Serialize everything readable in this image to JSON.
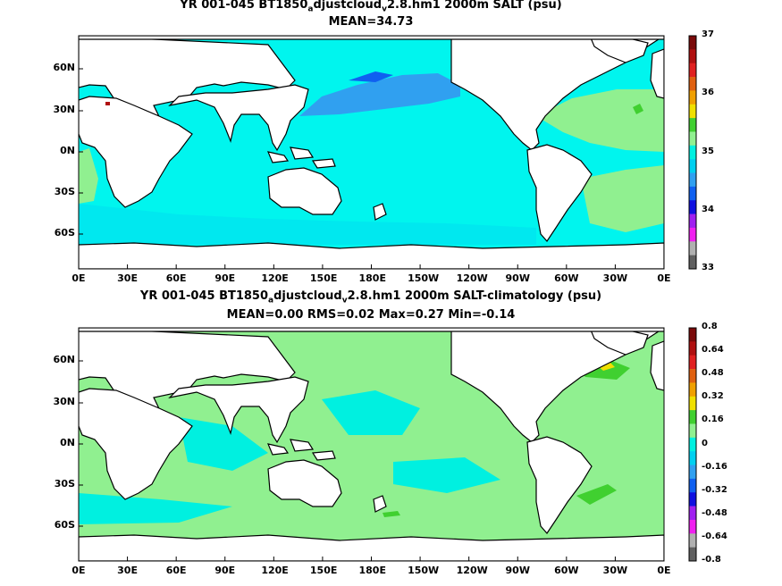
{
  "panels": [
    {
      "title_line1_pre": "YR 001-045 BT1850",
      "title_sub1": "a",
      "title_mid": "djustcloud",
      "title_sub2": "v",
      "title_line1_post": "2.8.hm1 2000m SALT (psu)",
      "title_line2": "MEAN=34.73",
      "colorbar_labels": [
        "37",
        "36",
        "35",
        "34",
        "33"
      ],
      "colors": [
        "#7a0a0a",
        "#b01010",
        "#e02020",
        "#e06010",
        "#f0a000",
        "#f0e000",
        "#40d030",
        "#90f090",
        "#00f0e0",
        "#00d0f0",
        "#30a0f0",
        "#1060f0",
        "#1010e0",
        "#a020f0",
        "#f020f0",
        "#b0b0b0",
        "#606060"
      ],
      "ocean_color": "#00f5ee"
    },
    {
      "title_line1_pre": "YR 001-045 BT1850",
      "title_sub1": "a",
      "title_mid": "djustcloud",
      "title_sub2": "v",
      "title_line1_post": "2.8.hm1 2000m SALT-climatology (psu)",
      "title_line2": "MEAN=0.00   RMS=0.02   Max=0.27   Min=-0.14",
      "colorbar_labels": [
        "0.8",
        "0.64",
        "0.48",
        "0.32",
        "0.16",
        "0",
        "-0.16",
        "-0.32",
        "-0.48",
        "-0.64",
        "-0.8"
      ],
      "colors": [
        "#7a0a0a",
        "#b01010",
        "#e02020",
        "#e06010",
        "#f0a000",
        "#f0e000",
        "#40d030",
        "#90f090",
        "#00f0e0",
        "#00d0f0",
        "#30a0f0",
        "#1060f0",
        "#1010e0",
        "#a020f0",
        "#f020f0",
        "#b0b0b0",
        "#606060"
      ],
      "ocean_color": "#90f090"
    }
  ],
  "lon_labels": [
    "0E",
    "30E",
    "60E",
    "90E",
    "120E",
    "150E",
    "180E",
    "150W",
    "120W",
    "90W",
    "60W",
    "30W",
    "0E"
  ],
  "lat_labels": [
    "60N",
    "30N",
    "0N",
    "30S",
    "60S"
  ]
}
